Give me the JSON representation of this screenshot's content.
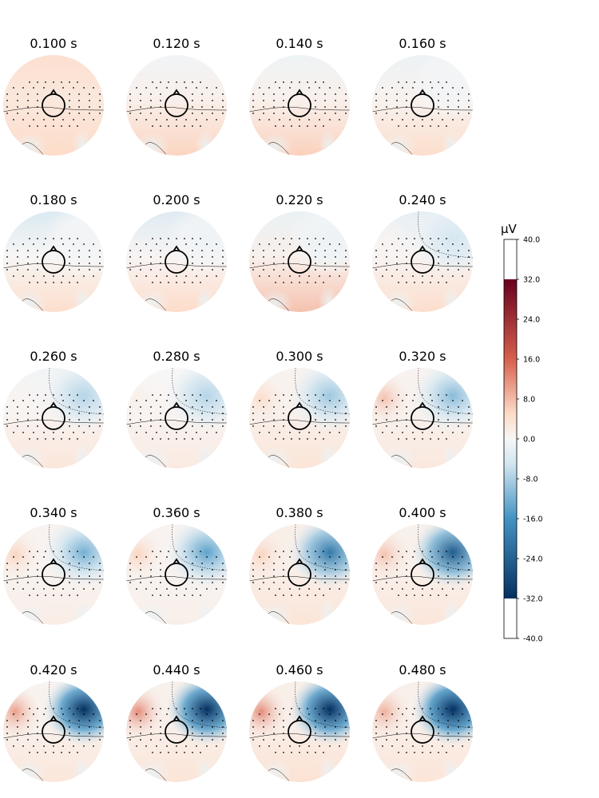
{
  "chart_data": {
    "type": "heatmap",
    "description_kind": "topomap grid",
    "times": [
      "0.100 s",
      "0.120 s",
      "0.140 s",
      "0.160 s",
      "0.180 s",
      "0.200 s",
      "0.220 s",
      "0.240 s",
      "0.260 s",
      "0.280 s",
      "0.300 s",
      "0.320 s",
      "0.340 s",
      "0.360 s",
      "0.380 s",
      "0.400 s",
      "0.420 s",
      "0.440 s",
      "0.460 s",
      "0.480 s"
    ],
    "grid": {
      "rows": 5,
      "cols": 4
    },
    "maps": [
      {
        "front": 0.28,
        "back": 0.32,
        "rightNeg": 0.0,
        "leftPos": 0.0
      },
      {
        "front": -0.05,
        "back": 0.35,
        "rightNeg": 0.0,
        "leftPos": 0.0
      },
      {
        "front": -0.08,
        "back": 0.36,
        "rightNeg": 0.0,
        "leftPos": 0.0
      },
      {
        "front": -0.1,
        "back": 0.3,
        "rightNeg": 0.05,
        "leftPos": 0.0
      },
      {
        "front": -0.25,
        "back": 0.3,
        "rightNeg": 0.05,
        "leftPos": 0.0
      },
      {
        "front": -0.22,
        "back": 0.32,
        "rightNeg": 0.08,
        "leftPos": 0.0
      },
      {
        "front": -0.12,
        "back": 0.4,
        "rightNeg": 0.1,
        "leftPos": 0.0
      },
      {
        "front": -0.15,
        "back": 0.3,
        "rightNeg": 0.3,
        "leftPos": 0.05
      },
      {
        "front": -0.05,
        "back": 0.2,
        "rightNeg": 0.4,
        "leftPos": 0.05
      },
      {
        "front": 0.0,
        "back": 0.15,
        "rightNeg": 0.4,
        "leftPos": 0.1
      },
      {
        "front": 0.05,
        "back": 0.22,
        "rightNeg": 0.45,
        "leftPos": 0.3
      },
      {
        "front": 0.05,
        "back": 0.18,
        "rightNeg": 0.5,
        "leftPos": 0.4
      },
      {
        "front": 0.05,
        "back": 0.12,
        "rightNeg": 0.55,
        "leftPos": 0.35
      },
      {
        "front": 0.05,
        "back": 0.1,
        "rightNeg": 0.6,
        "leftPos": 0.35
      },
      {
        "front": 0.1,
        "back": 0.22,
        "rightNeg": 0.75,
        "leftPos": 0.35
      },
      {
        "front": 0.08,
        "back": 0.2,
        "rightNeg": 0.85,
        "leftPos": 0.4
      },
      {
        "front": 0.05,
        "back": 0.2,
        "rightNeg": 1.0,
        "leftPos": 0.5
      },
      {
        "front": 0.08,
        "back": 0.22,
        "rightNeg": 1.0,
        "leftPos": 0.55
      },
      {
        "front": 0.1,
        "back": 0.25,
        "rightNeg": 1.0,
        "leftPos": 0.55
      },
      {
        "front": 0.08,
        "back": 0.22,
        "rightNeg": 1.05,
        "leftPos": 0.45
      }
    ],
    "colorbar": {
      "unit": "µV",
      "vmin": -40.0,
      "vmax": 40.0,
      "ticks": [
        "40.0",
        "32.0",
        "24.0",
        "16.0",
        "8.0",
        "0.0",
        "-8.0",
        "-16.0",
        "-24.0",
        "-32.0",
        "-40.0"
      ],
      "data_range": [
        -32.0,
        32.0
      ],
      "colormap": "RdBu_r",
      "colors": {
        "neg_dark": "#053061",
        "neg_mid": "#4393c3",
        "neg_light": "#d1e5f0",
        "zero": "#f7f7f7",
        "pos_light": "#fddbc7",
        "pos_mid": "#d6604d",
        "pos_dark": "#67001f"
      }
    }
  }
}
